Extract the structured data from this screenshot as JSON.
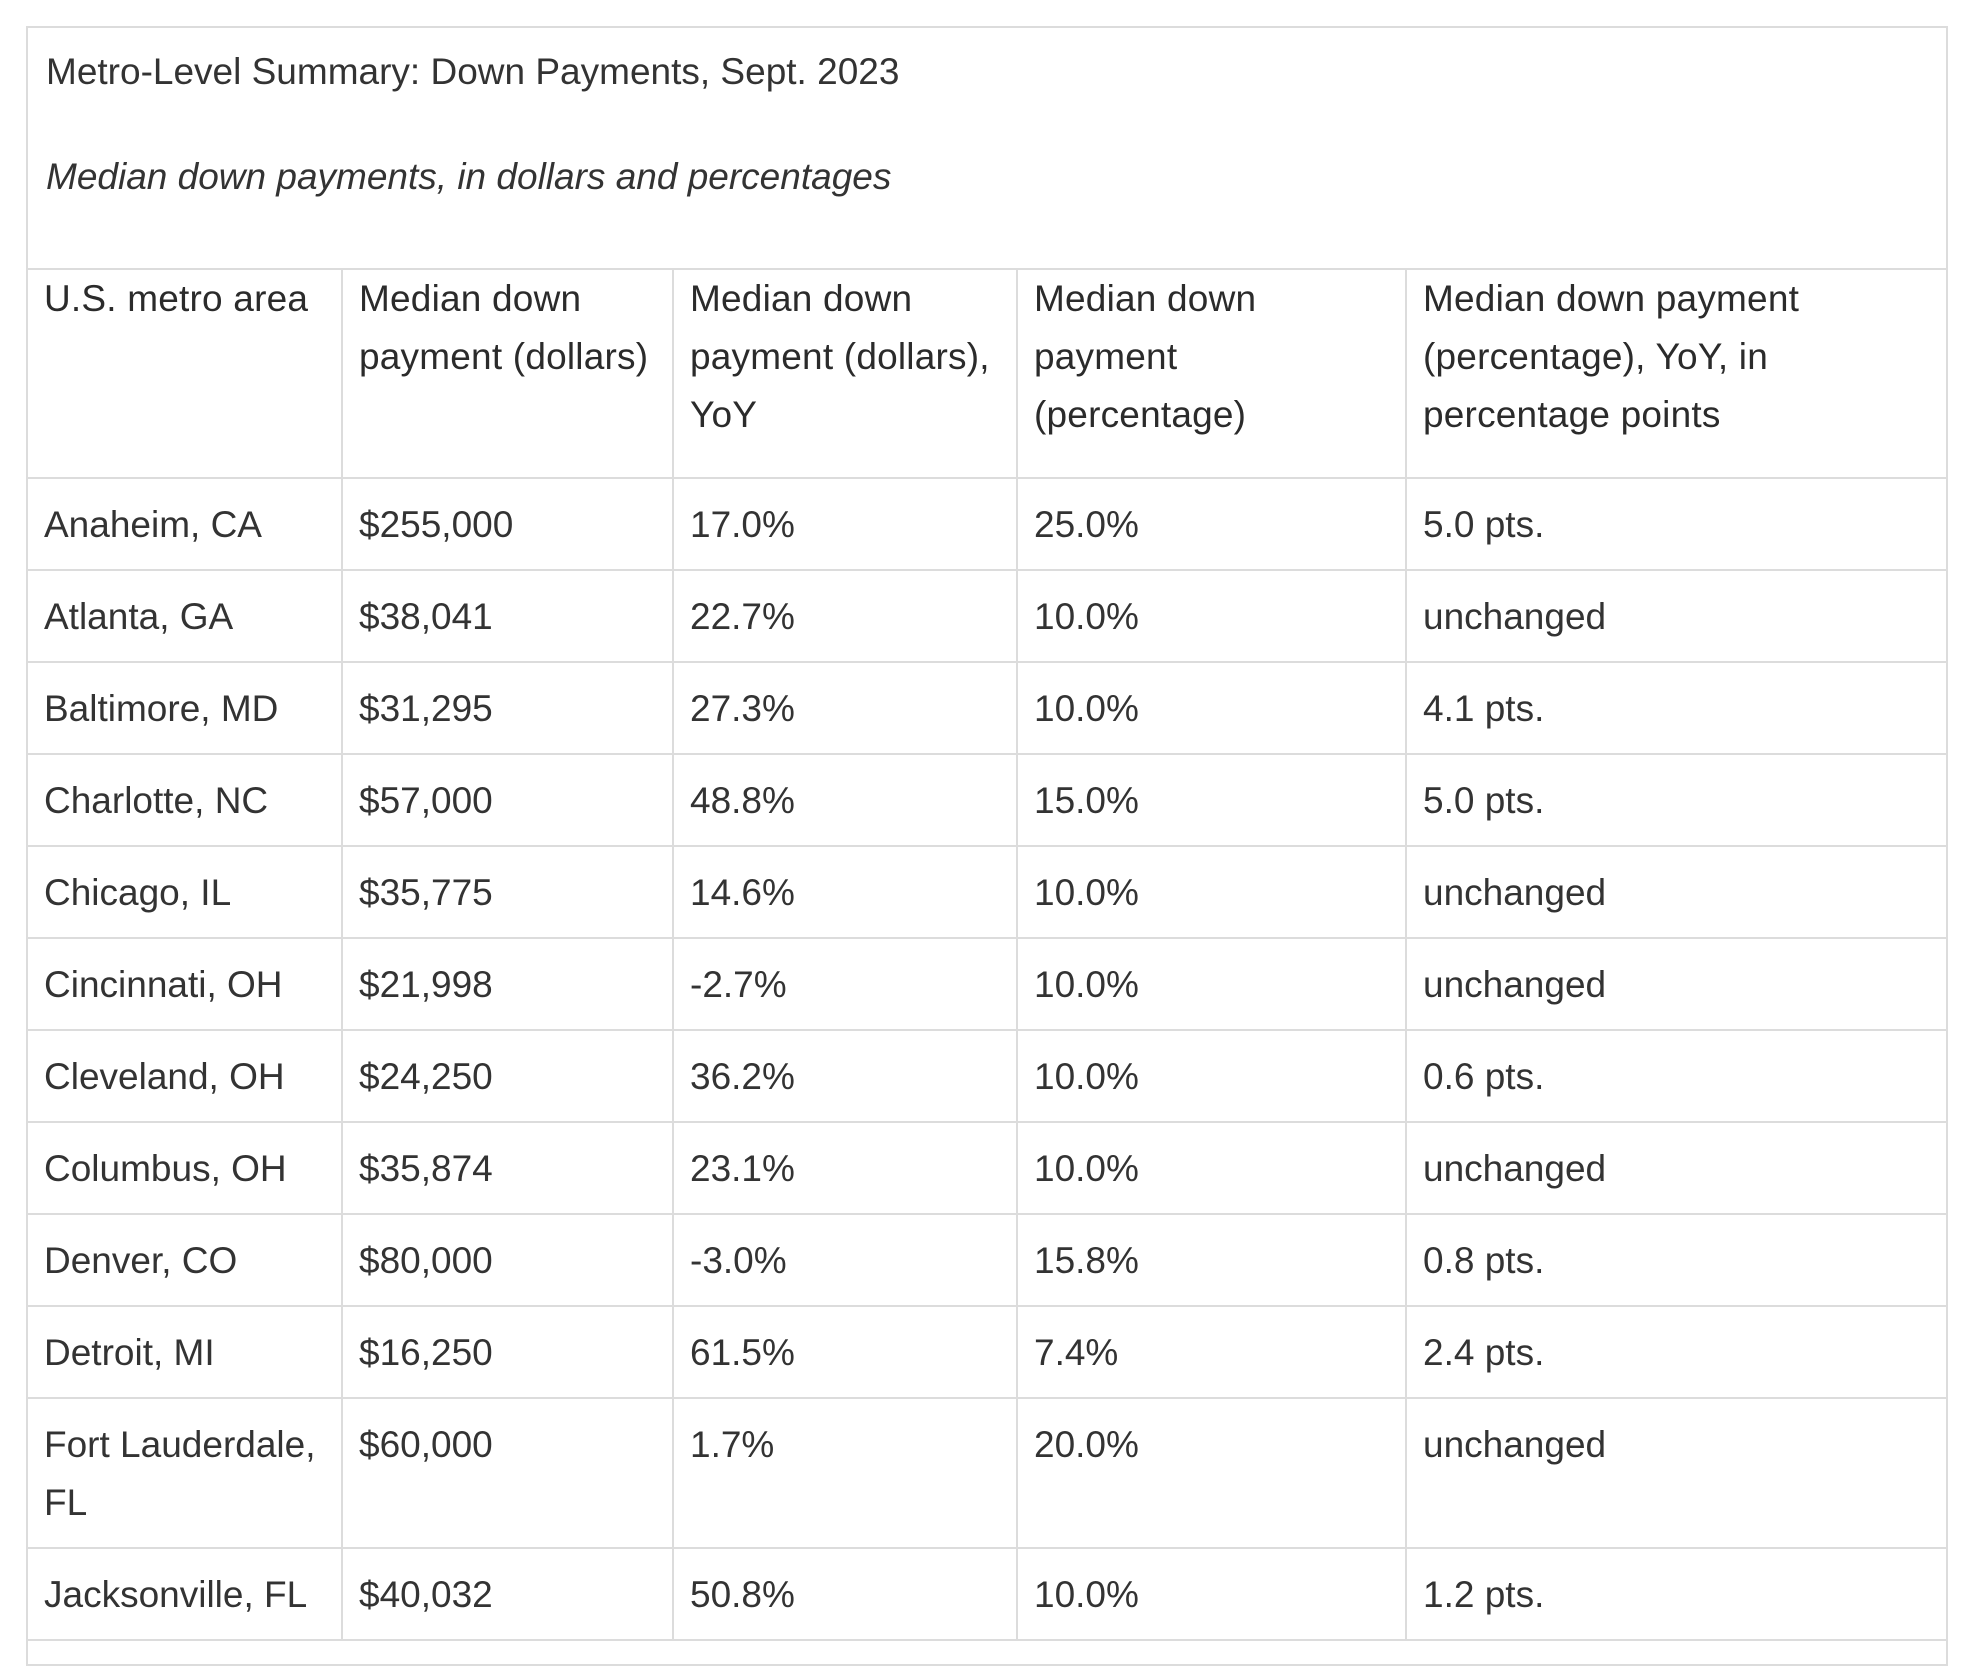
{
  "title": "Metro-Level Summary: Down Payments, Sept. 2023",
  "subtitle": "Median down payments, in dollars and percentages",
  "table": {
    "headers": [
      "U.S. metro area",
      "Median down payment (dollars)",
      "Median down payment (dollars), YoY",
      "Median down payment (percentage)",
      "Median down payment (percentage), YoY, in percentage points"
    ],
    "rows": [
      [
        "Anaheim, CA",
        "$255,000",
        "17.0%",
        "25.0%",
        "5.0 pts."
      ],
      [
        "Atlanta, GA",
        "$38,041",
        "22.7%",
        "10.0%",
        "unchanged"
      ],
      [
        "Baltimore, MD",
        "$31,295",
        "27.3%",
        "10.0%",
        "4.1 pts."
      ],
      [
        "Charlotte, NC",
        "$57,000",
        "48.8%",
        "15.0%",
        "5.0 pts."
      ],
      [
        "Chicago, IL",
        "$35,775",
        "14.6%",
        "10.0%",
        "unchanged"
      ],
      [
        "Cincinnati, OH",
        "$21,998",
        "-2.7%",
        "10.0%",
        "unchanged"
      ],
      [
        "Cleveland, OH",
        "$24,250",
        "36.2%",
        "10.0%",
        "0.6 pts."
      ],
      [
        "Columbus, OH",
        "$35,874",
        "23.1%",
        "10.0%",
        "unchanged"
      ],
      [
        "Denver, CO",
        "$80,000",
        "-3.0%",
        "15.8%",
        "0.8 pts."
      ],
      [
        "Detroit, MI",
        "$16,250",
        "61.5%",
        "7.4%",
        "2.4 pts."
      ],
      [
        "Fort Lauderdale, FL",
        "$60,000",
        "1.7%",
        "20.0%",
        "unchanged"
      ],
      [
        "Jacksonville, FL",
        "$40,032",
        "50.8%",
        "10.0%",
        "1.2 pts."
      ]
    ]
  }
}
